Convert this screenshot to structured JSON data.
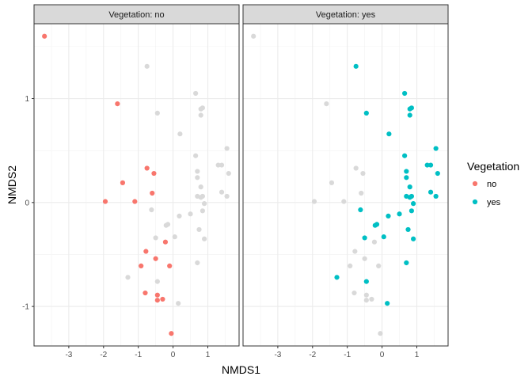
{
  "chart_data": {
    "type": "scatter",
    "xlabel": "NMDS1",
    "ylabel": "NMDS2",
    "xlim": [
      -4.0,
      1.9
    ],
    "ylim": [
      -1.38,
      1.72
    ],
    "x_ticks": [
      -3,
      -2,
      -1,
      0,
      1
    ],
    "x_tick_labels": [
      "-3",
      "-2",
      "-1",
      "0",
      "1"
    ],
    "y_ticks": [
      -1,
      0,
      1
    ],
    "y_tick_labels": [
      "-1",
      "0",
      "1"
    ],
    "grid": true,
    "background_color": "#d9d9d9",
    "facets": [
      {
        "label": "Vegetation: no",
        "highlight": "no"
      },
      {
        "label": "Vegetation: yes",
        "highlight": "yes"
      }
    ],
    "legend": {
      "title": "Vegetation",
      "position": "right",
      "entries": [
        {
          "label": "no",
          "color": "#f8766d"
        },
        {
          "label": "yes",
          "color": "#00bfc4"
        }
      ]
    },
    "series": [
      {
        "name": "no",
        "color": "#f8766d",
        "points": [
          [
            -3.7,
            1.6
          ],
          [
            -1.6,
            0.95
          ],
          [
            -1.45,
            0.19
          ],
          [
            -1.95,
            0.01
          ],
          [
            -1.1,
            0.01
          ],
          [
            -0.75,
            0.33
          ],
          [
            -0.55,
            0.28
          ],
          [
            -0.6,
            0.09
          ],
          [
            -0.78,
            -0.47
          ],
          [
            -0.92,
            -0.61
          ],
          [
            -0.5,
            -0.54
          ],
          [
            -0.22,
            -0.38
          ],
          [
            -0.1,
            -0.61
          ],
          [
            -0.8,
            -0.87
          ],
          [
            -0.45,
            -0.89
          ],
          [
            -0.45,
            -0.94
          ],
          [
            -0.3,
            -0.93
          ],
          [
            -0.05,
            -1.26
          ]
        ]
      },
      {
        "name": "yes",
        "color": "#00bfc4",
        "points": [
          [
            -0.75,
            1.31
          ],
          [
            0.65,
            1.05
          ],
          [
            -0.45,
            0.86
          ],
          [
            0.8,
            0.9
          ],
          [
            0.85,
            0.91
          ],
          [
            0.8,
            0.84
          ],
          [
            0.2,
            0.66
          ],
          [
            0.65,
            0.45
          ],
          [
            1.3,
            0.36
          ],
          [
            1.4,
            0.36
          ],
          [
            1.55,
            0.52
          ],
          [
            1.6,
            0.28
          ],
          [
            0.7,
            0.3
          ],
          [
            0.7,
            0.24
          ],
          [
            0.8,
            0.15
          ],
          [
            1.4,
            0.1
          ],
          [
            1.55,
            0.06
          ],
          [
            0.7,
            0.06
          ],
          [
            0.85,
            0.06
          ],
          [
            0.8,
            0.05
          ],
          [
            0.9,
            -0.01
          ],
          [
            -0.62,
            -0.07
          ],
          [
            0.85,
            -0.08
          ],
          [
            0.5,
            -0.11
          ],
          [
            0.18,
            -0.13
          ],
          [
            -0.15,
            -0.21
          ],
          [
            -0.2,
            -0.22
          ],
          [
            0.75,
            -0.26
          ],
          [
            -0.5,
            -0.34
          ],
          [
            0.05,
            -0.33
          ],
          [
            0.9,
            -0.35
          ],
          [
            0.7,
            -0.58
          ],
          [
            -1.3,
            -0.72
          ],
          [
            -0.45,
            -0.76
          ],
          [
            0.15,
            -0.97
          ]
        ]
      }
    ]
  }
}
